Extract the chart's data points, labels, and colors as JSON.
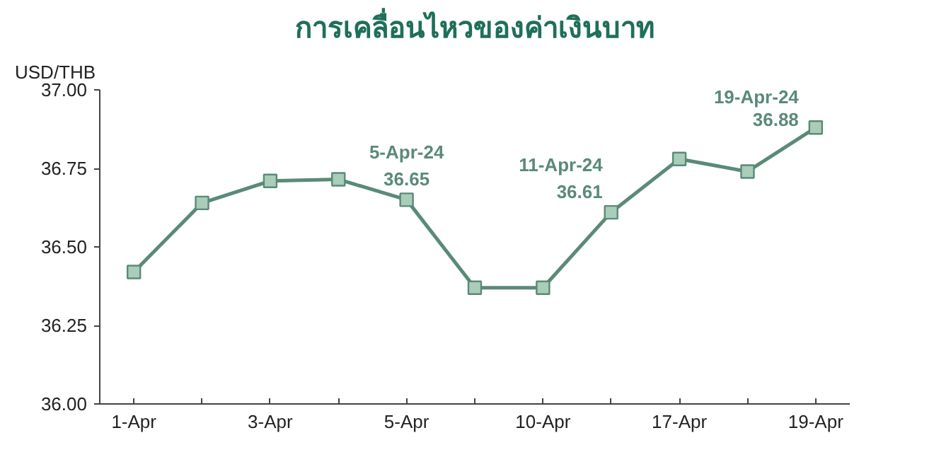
{
  "chart_data": {
    "type": "line",
    "title": "การเคลื่อนไหวของค่าเงินบาท",
    "ylabel": "USD/THB",
    "categories": [
      "1-Apr",
      null,
      "3-Apr",
      null,
      "5-Apr",
      null,
      "10-Apr",
      null,
      "17-Apr",
      null,
      "19-Apr"
    ],
    "series": [
      {
        "color": "#5a8a78",
        "values": [
          36.42,
          36.64,
          36.71,
          36.715,
          36.65,
          36.37,
          36.37,
          36.61,
          36.78,
          36.74,
          36.88
        ]
      }
    ],
    "marker": "square",
    "ylim": [
      36.0,
      37.0
    ],
    "yticks": [
      {
        "value": 36.0,
        "label": "36.00"
      },
      {
        "value": 36.25,
        "label": "36.25"
      },
      {
        "value": 36.5,
        "label": "36.50"
      },
      {
        "value": 36.75,
        "label": "36.75"
      },
      {
        "value": 37.0,
        "label": "37.00"
      }
    ],
    "grid": false,
    "value_labels": [
      null,
      null,
      null,
      null,
      "5-Apr-24\n36.65",
      null,
      null,
      "11-Apr-24\n36.61",
      null,
      null,
      "19-Apr-24\n36.88"
    ]
  }
}
